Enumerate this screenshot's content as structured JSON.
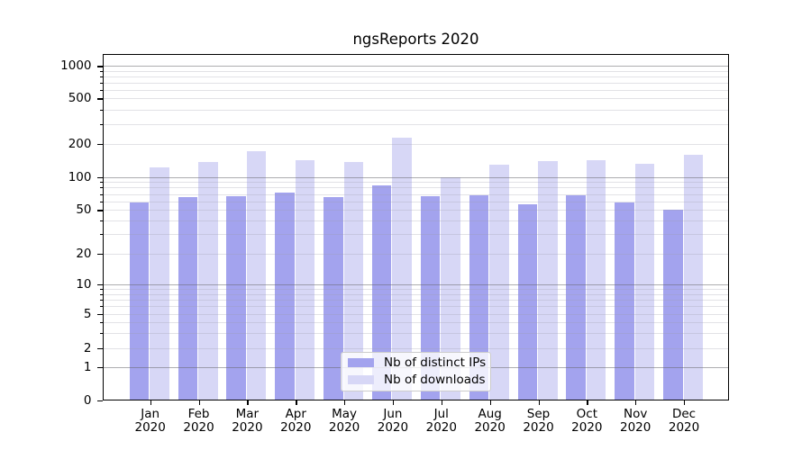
{
  "title": "ngsReports 2020",
  "chart_data": {
    "type": "bar",
    "title": "ngsReports 2020",
    "categories": [
      "Jan",
      "Feb",
      "Mar",
      "Apr",
      "May",
      "Jun",
      "Jul",
      "Aug",
      "Sep",
      "Oct",
      "Nov",
      "Dec"
    ],
    "category_year": "2020",
    "series": [
      {
        "name": "Nb of distinct IPs",
        "color": "#a3a3ee",
        "values": [
          59,
          65,
          67,
          72,
          66,
          84,
          67,
          68,
          56,
          68,
          58,
          50
        ]
      },
      {
        "name": "Nb of downloads",
        "color": "#d7d7f6",
        "values": [
          122,
          137,
          172,
          142,
          137,
          228,
          100,
          130,
          140,
          143,
          133,
          158
        ]
      }
    ],
    "yscale": "symlog",
    "yticks": [
      0,
      1,
      2,
      5,
      10,
      20,
      50,
      100,
      200,
      500,
      1000
    ],
    "ylim": [
      0,
      1300
    ],
    "xlabel": "",
    "ylabel": "",
    "grid": true,
    "legend_position": "lower center"
  }
}
